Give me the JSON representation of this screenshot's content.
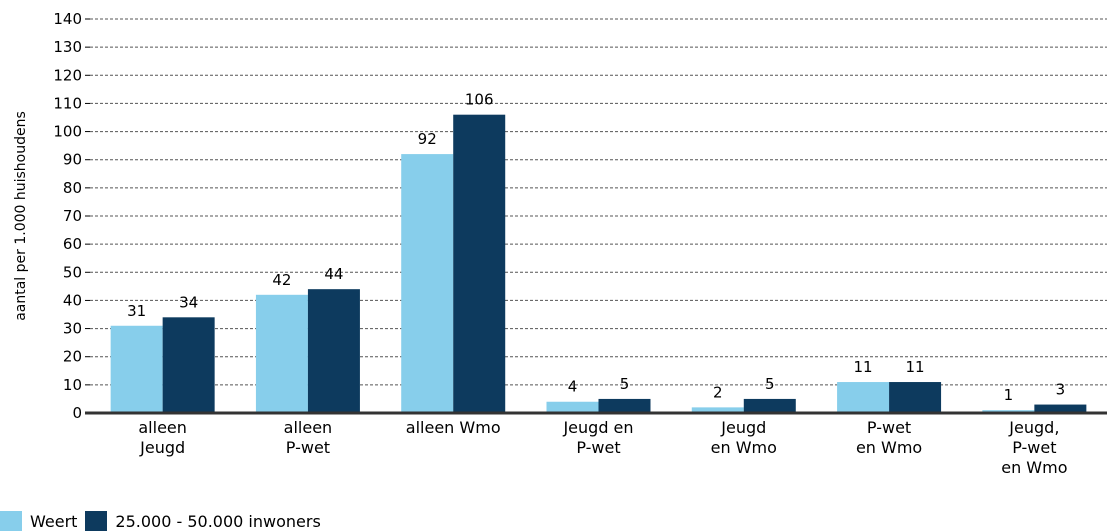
{
  "chart_data": {
    "type": "bar",
    "ylabel": "aantal per 1.000 huishoudens",
    "ylim": [
      0,
      140
    ],
    "yticks": [
      0,
      10,
      20,
      30,
      40,
      50,
      60,
      70,
      80,
      90,
      100,
      110,
      120,
      130,
      140
    ],
    "grid": true,
    "legend_position": "bottom-left",
    "categories": [
      [
        "alleen",
        "Jeugd"
      ],
      [
        "alleen",
        "P-wet"
      ],
      [
        "alleen Wmo"
      ],
      [
        "Jeugd en",
        "P-wet"
      ],
      [
        "Jeugd",
        "en Wmo"
      ],
      [
        "P-wet",
        "en Wmo"
      ],
      [
        "Jeugd,",
        "P-wet",
        "en Wmo"
      ]
    ],
    "series": [
      {
        "name": "Weert",
        "color": "#87CEEB",
        "values": [
          31,
          42,
          92,
          4,
          2,
          11,
          1
        ]
      },
      {
        "name": "25.000 - 50.000 inwoners",
        "color": "#0D3A5E",
        "values": [
          34,
          44,
          106,
          5,
          5,
          11,
          3
        ]
      }
    ]
  }
}
